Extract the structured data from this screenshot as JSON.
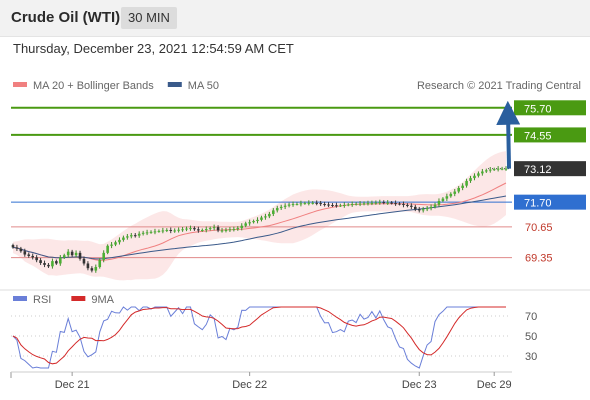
{
  "header": {
    "title": "Crude Oil (WTI)",
    "timeframe": "30 MIN"
  },
  "date_line": "Thursday, December 23, 2021 12:54:59 AM CET",
  "colors": {
    "resistance": "#4a9a12",
    "current": "#333333",
    "support_blue": "#2f6fd0",
    "support_red": "#e08a8a",
    "support_red_text": "#c0392b",
    "ma20": "#f08080",
    "ma50": "#3a5a8a",
    "arrow": "#2a5f9e",
    "rsi": "#6a7fd8",
    "rsi_ma": "#d42a2a"
  },
  "chart_data": [
    {
      "type": "candlestick",
      "legend": [
        {
          "name": "MA 20 + Bollinger Bands",
          "color": "#f08080"
        },
        {
          "name": "MA 50",
          "color": "#3a5a8a"
        }
      ],
      "credit": "Research © 2021 Trading Central",
      "ylim": [
        68.4,
        76.2
      ],
      "levels": [
        {
          "value": 75.7,
          "label": "75.70",
          "kind": "resistance"
        },
        {
          "value": 74.55,
          "label": "74.55",
          "kind": "resistance"
        },
        {
          "value": 73.12,
          "label": "73.12",
          "kind": "current"
        },
        {
          "value": 71.7,
          "label": "71.70",
          "kind": "support_blue"
        },
        {
          "value": 70.65,
          "label": "70.65",
          "kind": "support_red"
        },
        {
          "value": 69.35,
          "label": "69.35",
          "kind": "support_red"
        }
      ],
      "x_ticks": [
        "Dec 21",
        "Dec 22",
        "Dec 23",
        "Dec 29"
      ],
      "x_tick_index": [
        15,
        60,
        103,
        122
      ],
      "n_bars": 126,
      "target": 75.7,
      "close": [
        69.78,
        69.73,
        69.62,
        69.48,
        69.42,
        69.36,
        69.24,
        69.12,
        69.04,
        68.98,
        69.2,
        69.1,
        69.35,
        69.45,
        69.6,
        69.45,
        69.55,
        69.3,
        69.1,
        68.9,
        68.8,
        68.95,
        69.25,
        69.55,
        69.85,
        69.9,
        70.0,
        70.1,
        70.2,
        70.25,
        70.3,
        70.28,
        70.36,
        70.4,
        70.42,
        70.44,
        70.46,
        70.48,
        70.5,
        70.52,
        70.48,
        70.5,
        70.53,
        70.55,
        70.58,
        70.6,
        70.55,
        70.5,
        70.52,
        70.56,
        70.6,
        70.64,
        70.5,
        70.5,
        70.52,
        70.55,
        70.56,
        70.6,
        70.7,
        70.8,
        70.85,
        70.9,
        70.95,
        71.05,
        71.1,
        71.2,
        71.35,
        71.45,
        71.5,
        71.55,
        71.6,
        71.62,
        71.62,
        71.65,
        71.66,
        71.67,
        71.67,
        71.66,
        71.62,
        71.6,
        71.58,
        71.57,
        71.56,
        71.56,
        71.58,
        71.6,
        71.62,
        71.63,
        71.64,
        71.65,
        71.66,
        71.67,
        71.68,
        71.7,
        71.68,
        71.68,
        71.66,
        71.64,
        71.62,
        71.58,
        71.55,
        71.5,
        71.4,
        71.35,
        71.4,
        71.45,
        71.5,
        71.6,
        71.75,
        71.85,
        71.95,
        72.05,
        72.15,
        72.3,
        72.4,
        72.6,
        72.72,
        72.82,
        72.92,
        73.0,
        73.05,
        73.08,
        73.1,
        73.12,
        73.12,
        73.12
      ]
    },
    {
      "type": "line",
      "series": [
        {
          "name": "RSI",
          "color": "#6a7fd8"
        },
        {
          "name": "9MA",
          "color": "#d42a2a"
        }
      ],
      "y_ticks": [
        70,
        50,
        30
      ],
      "ylim": [
        16,
        80
      ]
    }
  ]
}
